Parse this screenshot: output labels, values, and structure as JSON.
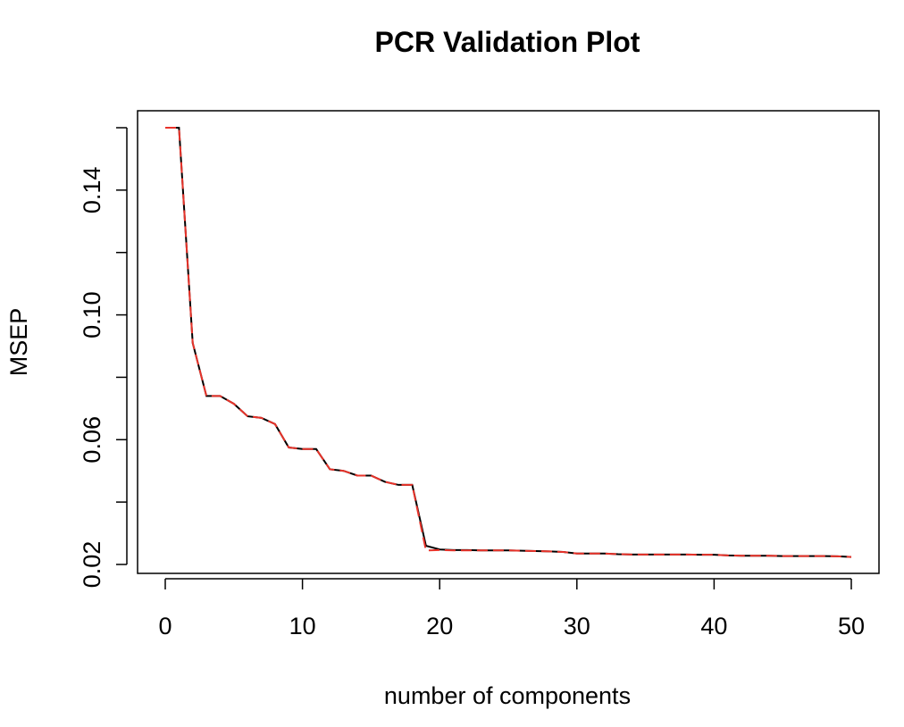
{
  "chart_data": {
    "type": "line",
    "title": "PCR Validation Plot",
    "xlabel": "number of components",
    "ylabel": "MSEP",
    "xlim": [
      -2,
      52
    ],
    "ylim": [
      0.017,
      0.164
    ],
    "x_ticks": [
      0,
      10,
      20,
      30,
      40,
      50
    ],
    "y_ticks": [
      0.02,
      0.06,
      0.1,
      0.14
    ],
    "y_ticks_minor": [
      0.02,
      0.04,
      0.06,
      0.08,
      0.1,
      0.12,
      0.14,
      0.16
    ],
    "y_tick_labels": [
      "0.02",
      "0.06",
      "0.10",
      "0.14"
    ],
    "x_tick_labels": [
      "0",
      "10",
      "20",
      "30",
      "40",
      "50"
    ],
    "grid": false,
    "legend": "none",
    "series": [
      {
        "color": "#000000",
        "dash": "solid",
        "x": [
          0,
          1,
          2,
          3,
          4,
          5,
          6,
          7,
          8,
          9,
          10,
          11,
          12,
          13,
          14,
          15,
          16,
          17,
          18,
          19,
          20,
          21,
          22,
          23,
          24,
          25,
          26,
          27,
          28,
          29,
          30,
          31,
          32,
          33,
          34,
          35,
          36,
          37,
          38,
          39,
          40,
          41,
          42,
          43,
          44,
          45,
          46,
          47,
          48,
          49,
          50
        ],
        "values": [
          0.16,
          0.16,
          0.091,
          0.074,
          0.074,
          0.0715,
          0.0675,
          0.067,
          0.065,
          0.0575,
          0.057,
          0.057,
          0.0505,
          0.05,
          0.0485,
          0.0485,
          0.0465,
          0.0455,
          0.0455,
          0.026,
          0.0248,
          0.0246,
          0.0246,
          0.0245,
          0.0245,
          0.0245,
          0.0244,
          0.0243,
          0.0242,
          0.024,
          0.0235,
          0.0235,
          0.0235,
          0.0233,
          0.0232,
          0.0232,
          0.0232,
          0.0232,
          0.0232,
          0.0231,
          0.0231,
          0.0229,
          0.0228,
          0.0228,
          0.0228,
          0.0227,
          0.0227,
          0.0227,
          0.0227,
          0.0226,
          0.0224
        ]
      },
      {
        "color": "#e8332a",
        "dash": "dashed",
        "x": [
          0,
          1,
          2,
          3,
          4,
          5,
          6,
          7,
          8,
          9,
          10,
          11,
          12,
          13,
          14,
          15,
          16,
          17,
          18,
          19,
          20,
          21,
          22,
          23,
          24,
          25,
          26,
          27,
          28,
          29,
          30,
          31,
          32,
          33,
          34,
          35,
          36,
          37,
          38,
          39,
          40,
          41,
          42,
          43,
          44,
          45,
          46,
          47,
          48,
          49,
          50
        ],
        "values": [
          0.16,
          0.16,
          0.091,
          0.074,
          0.074,
          0.0715,
          0.0675,
          0.067,
          0.065,
          0.0575,
          0.057,
          0.057,
          0.0505,
          0.05,
          0.0485,
          0.0485,
          0.0465,
          0.0455,
          0.0455,
          0.0245,
          0.0246,
          0.0245,
          0.0245,
          0.0245,
          0.0245,
          0.0245,
          0.0244,
          0.0243,
          0.0242,
          0.024,
          0.0235,
          0.0235,
          0.0235,
          0.0233,
          0.0232,
          0.0232,
          0.0232,
          0.0232,
          0.0232,
          0.0231,
          0.0231,
          0.0229,
          0.0228,
          0.0228,
          0.0228,
          0.0227,
          0.0227,
          0.0227,
          0.0227,
          0.0226,
          0.0224
        ]
      }
    ]
  }
}
